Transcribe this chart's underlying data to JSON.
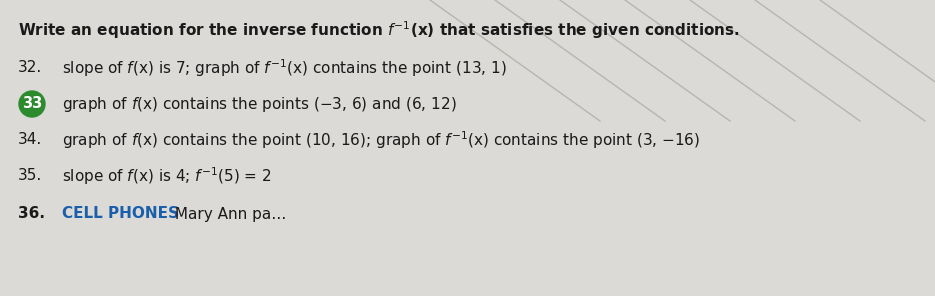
{
  "background_color": "#dcdad7",
  "fig_width": 9.35,
  "fig_height": 2.96,
  "lines": [
    {
      "number": "32.",
      "circle": false,
      "text": "slope of $f$(x) is 7; graph of $f^{-1}$(x) contains the point (13, 1)"
    },
    {
      "number": "33",
      "circle": true,
      "circle_color": "#2d8a2d",
      "text": "graph of $f$(x) contains the points ($-$3, 6) and (6, 12)"
    },
    {
      "number": "34.",
      "circle": false,
      "text": "graph of $f$(x) contains the point (10, 16); graph of $f^{-1}$(x) contains the point (3, $-$16)"
    },
    {
      "number": "35.",
      "circle": false,
      "text": "slope of $f$(x) is 4; $f^{-1}$(5) = 2"
    },
    {
      "number": "36.",
      "circle": false,
      "bold_part": "CELL PHONES",
      "bold_color": "#1a5faa",
      "text": " Mary Ann pa…"
    }
  ],
  "title_fontsize": 11.0,
  "body_fontsize": 11.0,
  "diagonal_line_color": "#b8b5b0",
  "text_color": "#1a1a1a",
  "circle_text_color": "#ffffff"
}
